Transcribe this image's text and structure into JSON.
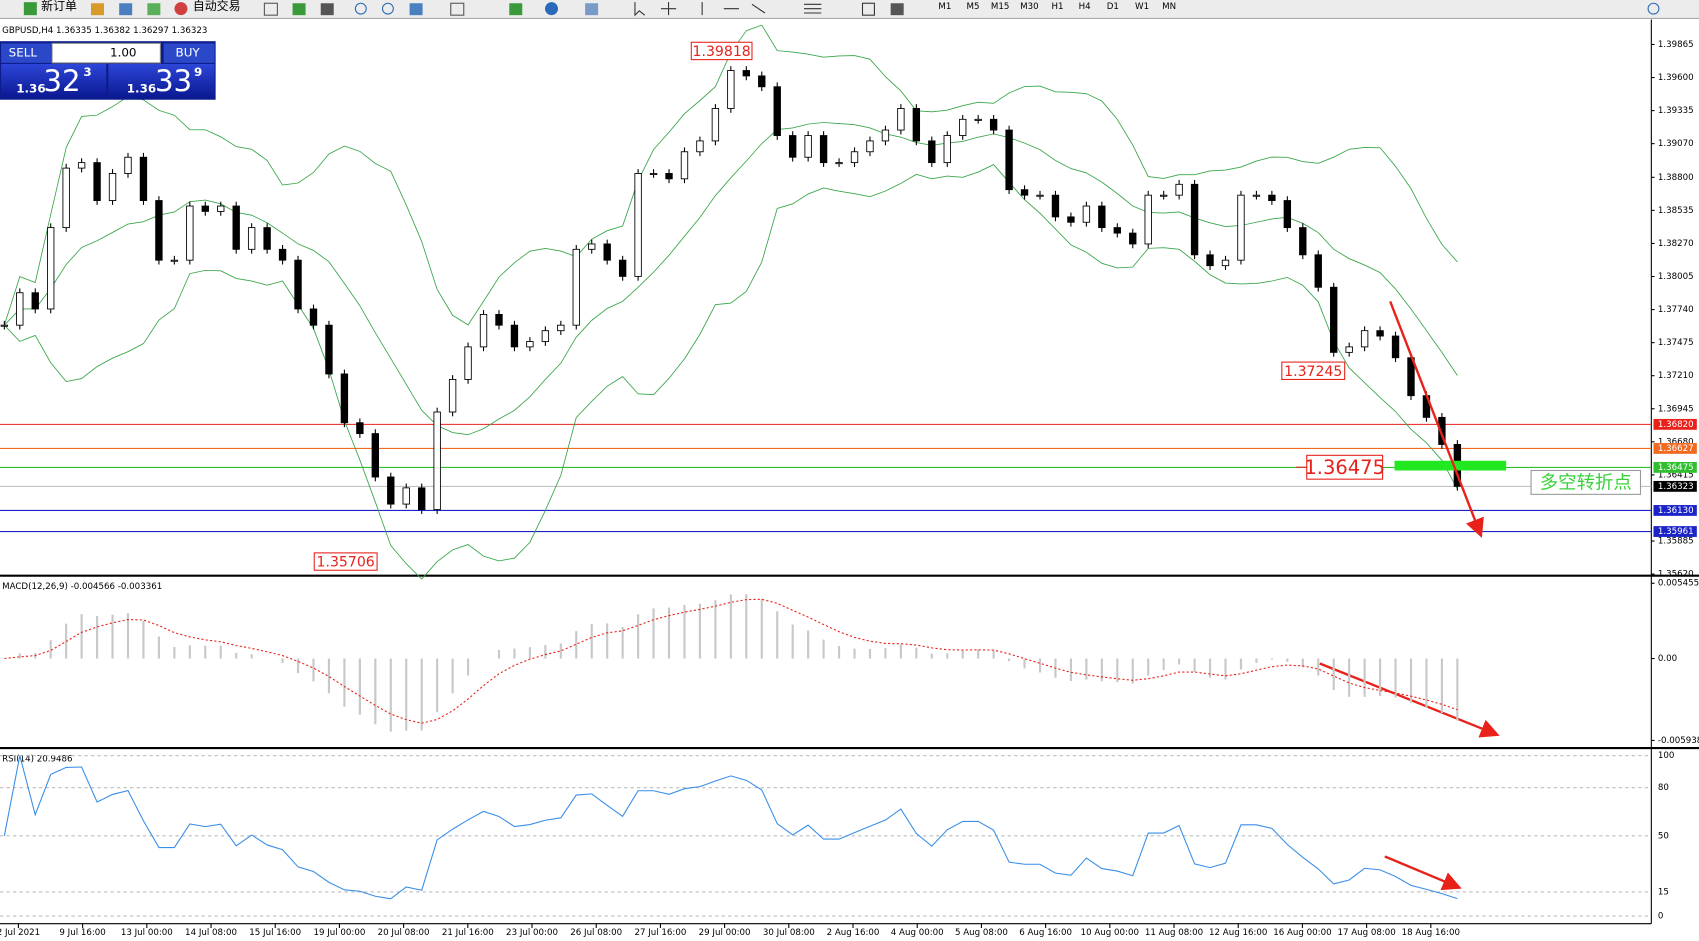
{
  "toolbar": {
    "new_order": "新订单",
    "auto_trading": "自动交易",
    "timeframes": [
      "M1",
      "M5",
      "M15",
      "M30",
      "H1",
      "H4",
      "D1",
      "W1",
      "MN"
    ]
  },
  "symbol_header": "GBPUSD,H4  1.36335 1.36382 1.36297 1.36323",
  "trade_panel": {
    "sell": "SELL",
    "lot": "1.00",
    "buy": "BUY",
    "sell_price": {
      "prefix": "1.36",
      "big": "32",
      "small": "3"
    },
    "buy_price": {
      "prefix": "1.36",
      "big": "33",
      "small": "9"
    }
  },
  "price_chart": {
    "ylim": [
      1.35616,
      1.40065
    ],
    "yticks": [
      {
        "value": 1.39865,
        "label": "1.39865"
      },
      {
        "value": 1.396,
        "label": "1.39600"
      },
      {
        "value": 1.39335,
        "label": "1.39335"
      },
      {
        "value": 1.3907,
        "label": "1.39070"
      },
      {
        "value": 1.388,
        "label": "1.38800"
      },
      {
        "value": 1.38535,
        "label": "1.38535"
      },
      {
        "value": 1.3827,
        "label": "1.38270"
      },
      {
        "value": 1.38005,
        "label": "1.38005"
      },
      {
        "value": 1.3774,
        "label": "1.37740"
      },
      {
        "value": 1.37475,
        "label": "1.37475"
      },
      {
        "value": 1.3721,
        "label": "1.37210"
      },
      {
        "value": 1.36945,
        "label": "1.36945"
      },
      {
        "value": 1.3668,
        "label": "1.36680"
      },
      {
        "value": 1.36415,
        "label": "1.36415"
      },
      {
        "value": 1.35885,
        "label": "1.35885"
      },
      {
        "value": 1.3562,
        "label": "1.35620"
      }
    ],
    "levels": [
      {
        "value": 1.3682,
        "label": "1.36820",
        "color": "#e8221b"
      },
      {
        "value": 1.36627,
        "label": "1.36627",
        "color": "#f26a21"
      },
      {
        "value": 1.36475,
        "label": "1.36475",
        "color": "#2fbf2f"
      },
      {
        "value": 1.36323,
        "label": "1.36323",
        "color": "#000000"
      },
      {
        "value": 1.3613,
        "label": "1.36130",
        "color": "#1c24c8"
      },
      {
        "value": 1.35961,
        "label": "1.35961",
        "color": "#1c24c8"
      }
    ],
    "closes": [
      1.37615,
      1.37875,
      1.37745,
      1.38397,
      1.38874,
      1.38918,
      1.38614,
      1.38831,
      1.38961,
      1.38614,
      1.38136,
      1.38136,
      1.3857,
      1.38527,
      1.3857,
      1.38223,
      1.38397,
      1.38223,
      1.38136,
      1.37745,
      1.37615,
      1.37224,
      1.36833,
      1.36746,
      1.36398,
      1.36181,
      1.36311,
      1.36137,
      1.36919,
      1.3718,
      1.37441,
      1.37701,
      1.37615,
      1.37441,
      1.37484,
      1.37571,
      1.37615,
      1.38223,
      1.38266,
      1.38136,
      1.38006,
      1.38831,
      1.38831,
      1.38788,
      1.39005,
      1.39092,
      1.39352,
      1.39656,
      1.39613,
      1.39526,
      1.39135,
      1.38961,
      1.39135,
      1.38918,
      1.38918,
      1.39005,
      1.39092,
      1.39179,
      1.39352,
      1.39092,
      1.38918,
      1.39135,
      1.39265,
      1.39265,
      1.39179,
      1.38701,
      1.38657,
      1.38657,
      1.38483,
      1.3844,
      1.3857,
      1.38397,
      1.38353,
      1.38266,
      1.38657,
      1.38657,
      1.38744,
      1.38179,
      1.38092,
      1.38136,
      1.38657,
      1.38657,
      1.38614,
      1.38397,
      1.38179,
      1.37919,
      1.37397,
      1.37441,
      1.37571,
      1.37528,
      1.37354,
      1.3705,
      1.36876,
      1.36659,
      1.36323
    ],
    "annotations": [
      "1.39818",
      "1.35706",
      "1.37245",
      "1.36475",
      "多空转折点"
    ]
  },
  "macd": {
    "label": "MACD(12,26,9) -0.004566 -0.003361",
    "ylim": [
      -0.006488,
      0.005848
    ],
    "yticks": [
      0.005455,
      {
        "value": 0,
        "label": "0.00"
      },
      -0.005938
    ]
  },
  "rsi": {
    "label": "RSI(14) 20.9486",
    "ylim": [
      -3.4,
      103.4
    ],
    "yticks": [
      100,
      80,
      50,
      15,
      0
    ]
  },
  "time_labels": [
    "2 Jul 2021",
    "9 Jul 16:00",
    "13 Jul 00:00",
    "14 Jul 08:00",
    "15 Jul 16:00",
    "19 Jul 00:00",
    "20 Jul 08:00",
    "21 Jul 16:00",
    "23 Jul 00:00",
    "26 Jul 08:00",
    "27 Jul 16:00",
    "29 Jul 00:00",
    "30 Jul 08:00",
    "2 Aug 16:00",
    "4 Aug 00:00",
    "5 Aug 08:00",
    "6 Aug 16:00",
    "10 Aug 00:00",
    "11 Aug 08:00",
    "12 Aug 16:00",
    "16 Aug 00:00",
    "17 Aug 08:00",
    "18 Aug 16:00"
  ]
}
